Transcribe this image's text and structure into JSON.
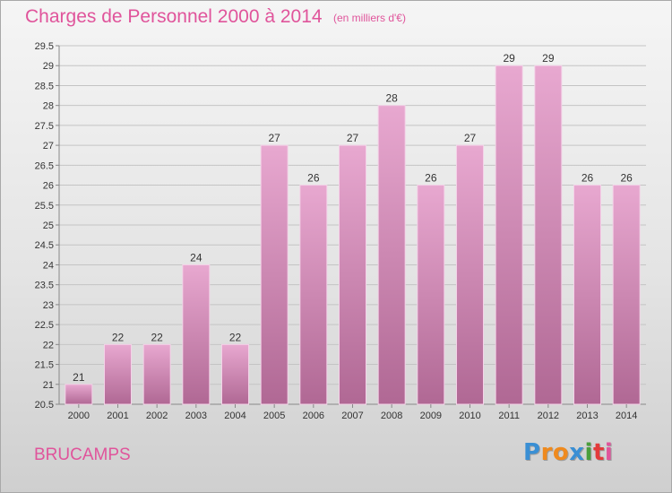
{
  "header": {
    "title": "Charges de Personnel 2000 à 2014",
    "subtitle": "(en milliers d'€)"
  },
  "footer": {
    "city": "BRUCAMPS",
    "logo": [
      "P",
      "r",
      "o",
      "x",
      "i",
      "t",
      "i"
    ],
    "logo_colors": [
      "#3a8fd4",
      "#ef8a1e",
      "#ef8a1e",
      "#3a8fd4",
      "#4a9e3c",
      "#e33b3b",
      "#e0549b"
    ]
  },
  "colors": {
    "title": "#e0549b",
    "bar_top": "#e8a8d0",
    "bar_bottom": "#b06894",
    "bar_edge": "#f4d2e8"
  },
  "chart_data": {
    "type": "bar",
    "categories": [
      "2000",
      "2001",
      "2002",
      "2003",
      "2004",
      "2005",
      "2006",
      "2007",
      "2008",
      "2009",
      "2010",
      "2011",
      "2012",
      "2013",
      "2014"
    ],
    "values": [
      21,
      22,
      22,
      24,
      22,
      27,
      26,
      27,
      28,
      26,
      27,
      29,
      29,
      26,
      26
    ],
    "labels": [
      "21",
      "22",
      "22",
      "24",
      "22",
      "27",
      "26",
      "27",
      "28",
      "26",
      "27",
      "29",
      "29",
      "26",
      "26"
    ],
    "ylim": [
      20.5,
      29.5
    ],
    "yticks": [
      "20.5",
      "21",
      "21.5",
      "22",
      "22.5",
      "23",
      "23.5",
      "24",
      "24.5",
      "25",
      "25.5",
      "26",
      "26.5",
      "27",
      "27.5",
      "28",
      "28.5",
      "29",
      "29.5"
    ],
    "grid": true,
    "xlabel": "",
    "ylabel": ""
  }
}
